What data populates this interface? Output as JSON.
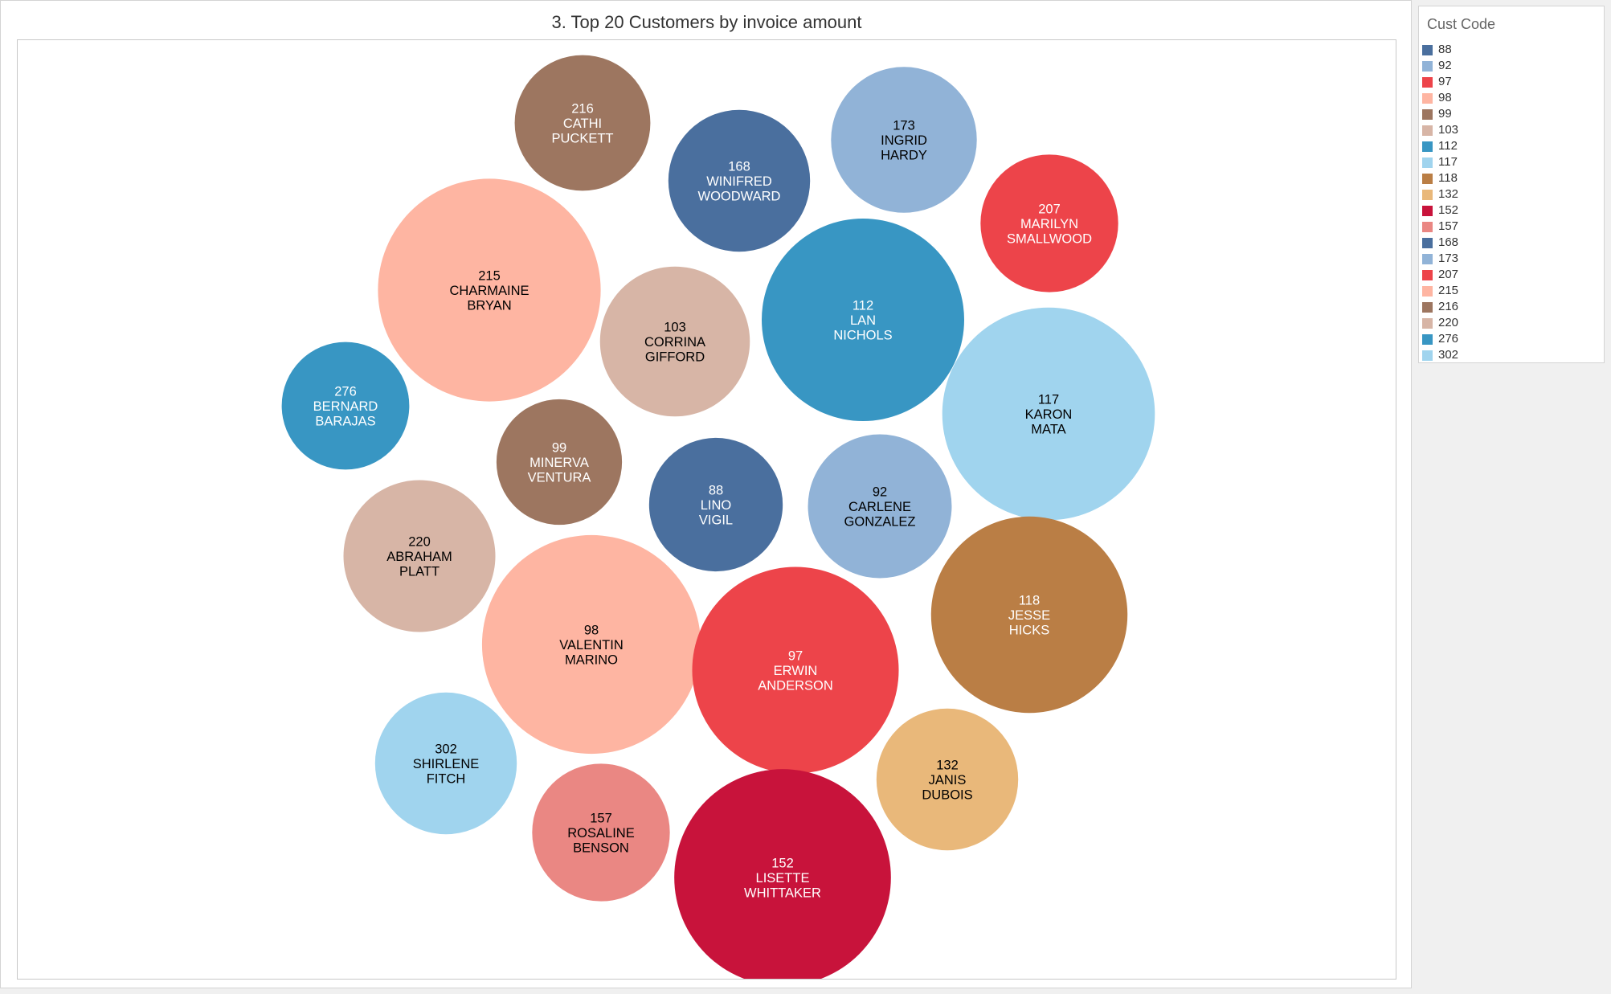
{
  "chart_data": {
    "type": "packed-bubble",
    "title": "3. Top 20 Customers by invoice amount",
    "legend": {
      "title": "Cust Code",
      "position": "right",
      "entries": [
        {
          "code": "88",
          "color": "#4a6f9e"
        },
        {
          "code": "92",
          "color": "#91b3d7"
        },
        {
          "code": "97",
          "color": "#ed444a"
        },
        {
          "code": "98",
          "color": "#feb5a2"
        },
        {
          "code": "99",
          "color": "#9d7660"
        },
        {
          "code": "103",
          "color": "#d7b5a6"
        },
        {
          "code": "112",
          "color": "#3896c3"
        },
        {
          "code": "117",
          "color": "#a0d4ee"
        },
        {
          "code": "118",
          "color": "#ba7e45"
        },
        {
          "code": "132",
          "color": "#e9b87a"
        },
        {
          "code": "152",
          "color": "#c8133b"
        },
        {
          "code": "157",
          "color": "#ea8783"
        },
        {
          "code": "168",
          "color": "#4a6f9e"
        },
        {
          "code": "173",
          "color": "#91b3d7"
        },
        {
          "code": "207",
          "color": "#ed444a"
        },
        {
          "code": "215",
          "color": "#feb5a2"
        },
        {
          "code": "216",
          "color": "#9d7660"
        },
        {
          "code": "220",
          "color": "#d7b5a6"
        },
        {
          "code": "276",
          "color": "#3896c3"
        },
        {
          "code": "302",
          "color": "#a0d4ee"
        }
      ]
    },
    "bubbles": [
      {
        "code": "216",
        "first": "CATHI",
        "last": "PUCKETT",
        "size": 0.67,
        "color": "#9d7660",
        "text_color": "#ffffff"
      },
      {
        "code": "168",
        "first": "WINIFRED",
        "last": "WOODWARD",
        "size": 0.7,
        "color": "#4a6f9e",
        "text_color": "#ffffff"
      },
      {
        "code": "173",
        "first": "INGRID",
        "last": "HARDY",
        "size": 0.72,
        "color": "#91b3d7",
        "text_color": "#000000"
      },
      {
        "code": "207",
        "first": "MARILYN",
        "last": "SMALLWOOD",
        "size": 0.68,
        "color": "#ed444a",
        "text_color": "#ffffff"
      },
      {
        "code": "215",
        "first": "CHARMAINE",
        "last": "BRYAN",
        "size": 1.1,
        "color": "#feb5a2",
        "text_color": "#000000"
      },
      {
        "code": "103",
        "first": "CORRINA",
        "last": "GIFFORD",
        "size": 0.74,
        "color": "#d7b5a6",
        "text_color": "#000000"
      },
      {
        "code": "112",
        "first": "LAN",
        "last": "NICHOLS",
        "size": 1.0,
        "color": "#3896c3",
        "text_color": "#ffffff"
      },
      {
        "code": "276",
        "first": "BERNARD",
        "last": "BARAJAS",
        "size": 0.63,
        "color": "#3896c3",
        "text_color": "#ffffff"
      },
      {
        "code": "117",
        "first": "KARON",
        "last": "MATA",
        "size": 1.05,
        "color": "#a0d4ee",
        "text_color": "#000000"
      },
      {
        "code": "99",
        "first": "MINERVA",
        "last": "VENTURA",
        "size": 0.62,
        "color": "#9d7660",
        "text_color": "#ffffff"
      },
      {
        "code": "88",
        "first": "LINO",
        "last": "VIGIL",
        "size": 0.66,
        "color": "#4a6f9e",
        "text_color": "#ffffff"
      },
      {
        "code": "92",
        "first": "CARLENE",
        "last": "GONZALEZ",
        "size": 0.71,
        "color": "#91b3d7",
        "text_color": "#000000"
      },
      {
        "code": "220",
        "first": "ABRAHAM",
        "last": "PLATT",
        "size": 0.75,
        "color": "#d7b5a6",
        "text_color": "#000000"
      },
      {
        "code": "118",
        "first": "JESSE",
        "last": "HICKS",
        "size": 0.97,
        "color": "#ba7e45",
        "text_color": "#ffffff"
      },
      {
        "code": "98",
        "first": "VALENTIN",
        "last": "MARINO",
        "size": 1.08,
        "color": "#feb5a2",
        "text_color": "#000000"
      },
      {
        "code": "97",
        "first": "ERWIN",
        "last": "ANDERSON",
        "size": 1.02,
        "color": "#ed444a",
        "text_color": "#ffffff"
      },
      {
        "code": "302",
        "first": "SHIRLENE",
        "last": "FITCH",
        "size": 0.7,
        "color": "#a0d4ee",
        "text_color": "#000000"
      },
      {
        "code": "132",
        "first": "JANIS",
        "last": "DUBOIS",
        "size": 0.7,
        "color": "#e9b87a",
        "text_color": "#000000"
      },
      {
        "code": "157",
        "first": "ROSALINE",
        "last": "BENSON",
        "size": 0.68,
        "color": "#ea8783",
        "text_color": "#000000"
      },
      {
        "code": "152",
        "first": "LISETTE",
        "last": "WHITTAKER",
        "size": 1.07,
        "color": "#c8133b",
        "text_color": "#ffffff"
      }
    ]
  }
}
